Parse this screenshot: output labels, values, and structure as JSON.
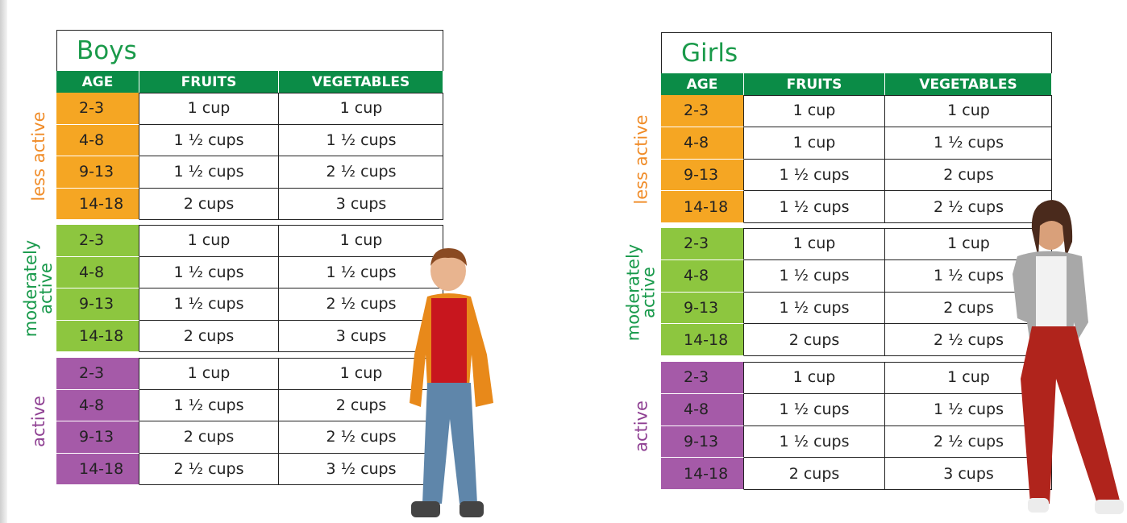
{
  "tables": [
    {
      "title": "Boys",
      "header": [
        "AGE",
        "FRUITS",
        "VEGETABLES"
      ],
      "groups": [
        {
          "label": "less active",
          "rows": [
            [
              "2-3",
              "1 cup",
              "1 cup"
            ],
            [
              "4-8",
              "1 ½ cups",
              "1 ½ cups"
            ],
            [
              "9-13",
              "1 ½ cups",
              "2 ½ cups"
            ],
            [
              "14-18",
              "2 cups",
              "3 cups"
            ]
          ]
        },
        {
          "label": "moderately active",
          "rows": [
            [
              "2-3",
              "1 cup",
              "1 cup"
            ],
            [
              "4-8",
              "1 ½ cups",
              "1 ½ cups"
            ],
            [
              "9-13",
              "1 ½ cups",
              "2 ½ cups"
            ],
            [
              "14-18",
              "2 cups",
              "3 cups"
            ]
          ]
        },
        {
          "label": "active",
          "rows": [
            [
              "2-3",
              "1 cup",
              "1 cup"
            ],
            [
              "4-8",
              "1 ½ cups",
              "2 cups"
            ],
            [
              "9-13",
              "2 cups",
              "2 ½ cups"
            ],
            [
              "14-18",
              "2 ½ cups",
              "3 ½ cups"
            ]
          ]
        }
      ]
    },
    {
      "title": "Girls",
      "header": [
        "AGE",
        "FRUITS",
        "VEGETABLES"
      ],
      "groups": [
        {
          "label": "less active",
          "rows": [
            [
              "2-3",
              "1 cup",
              "1 cup"
            ],
            [
              "4-8",
              "1 cup",
              "1 ½ cups"
            ],
            [
              "9-13",
              "1 ½ cups",
              "2 cups"
            ],
            [
              "14-18",
              "1 ½ cups",
              "2 ½ cups"
            ]
          ]
        },
        {
          "label": "moderately active",
          "rows": [
            [
              "2-3",
              "1 cup",
              "1 cup"
            ],
            [
              "4-8",
              "1 ½ cups",
              "1 ½ cups"
            ],
            [
              "9-13",
              "1 ½ cups",
              "2 cups"
            ],
            [
              "14-18",
              "2 cups",
              "2 ½ cups"
            ]
          ]
        },
        {
          "label": "active",
          "rows": [
            [
              "2-3",
              "1 cup",
              "1 cup"
            ],
            [
              "4-8",
              "1 ½ cups",
              "1 ½ cups"
            ],
            [
              "9-13",
              "1 ½ cups",
              "2 ½ cups"
            ],
            [
              "14-18",
              "2 cups",
              "3 cups"
            ]
          ]
        }
      ]
    }
  ]
}
